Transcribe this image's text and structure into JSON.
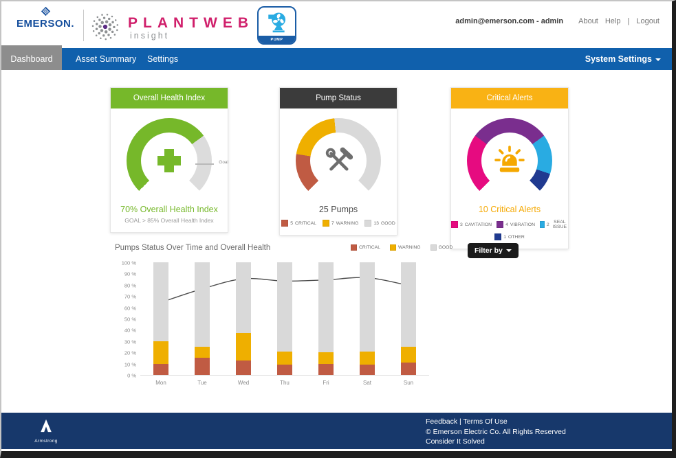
{
  "header": {
    "emerson_logo": "EMERSON.",
    "product_name": "PLANTWEB",
    "product_sub": "insight",
    "app_tile_label": "PUMP",
    "user": "admin@emerson.com - admin",
    "links": {
      "about": "About",
      "help": "Help",
      "separator": "|",
      "logout": "Logout"
    }
  },
  "navbar": {
    "tabs": [
      {
        "label": "Dashboard",
        "active": true
      },
      {
        "label": "Asset Summary",
        "active": false
      },
      {
        "label": "Settings",
        "active": false
      }
    ],
    "system_settings": "System Settings"
  },
  "cards": {
    "health": {
      "title": "Overall Health Index",
      "header_color": "#76b82a",
      "value_pct": 70,
      "goal_pct": 85,
      "goal_label": "Goal",
      "value_text": "70% Overall Health Index",
      "goal_text": "GOAL > 85% Overall Health Index",
      "ring": [
        {
          "color": "#76b82a",
          "value": 70
        },
        {
          "color": "#dcdcdc",
          "value": 30
        }
      ]
    },
    "pumps": {
      "title": "Pump Status",
      "header_color": "#3b3b3b",
      "total_text": "25 Pumps",
      "segments": [
        {
          "count": 5,
          "label": "CRITICAL",
          "color": "#c05b43"
        },
        {
          "count": 7,
          "label": "WARNING",
          "color": "#efaf00"
        },
        {
          "count": 13,
          "label": "GOOD",
          "color": "#d9d9d9"
        }
      ]
    },
    "alerts": {
      "title": "Critical Alerts",
      "header_color": "#f9b214",
      "total_text": "10 Critical Alerts",
      "total_color": "#f5a800",
      "segments": [
        {
          "count": 3,
          "label": "CAVITATION",
          "color": "#e60b80"
        },
        {
          "count": 4,
          "label": "VIBRATION",
          "color": "#7a2e8e"
        },
        {
          "count": 2,
          "label": "SEAL ISSUE",
          "color": "#29abe2"
        },
        {
          "count": 1,
          "label": "OTHER",
          "color": "#203a90"
        }
      ]
    }
  },
  "chart_data": {
    "type": "bar",
    "subtype": "stacked-bars-with-line",
    "title": "Pumps Status Over Time and Overall Health",
    "categories": [
      "Mon",
      "Tue",
      "Wed",
      "Thu",
      "Fri",
      "Sat",
      "Sun"
    ],
    "series": [
      {
        "name": "CRITICAL",
        "color": "#c05b43",
        "values": [
          10,
          15,
          13,
          9,
          10,
          9,
          11
        ]
      },
      {
        "name": "WARNING",
        "color": "#efaf00",
        "values": [
          20,
          10,
          24,
          12,
          10,
          12,
          14
        ]
      },
      {
        "name": "GOOD",
        "color": "#d9d9d9",
        "values": [
          70,
          75,
          63,
          79,
          80,
          79,
          75
        ]
      }
    ],
    "line": {
      "name": "Overall Health",
      "color": "#4d4d4d",
      "values": [
        65,
        77,
        86,
        84,
        85,
        87,
        80
      ]
    },
    "y_ticks": [
      "100 %",
      "90 %",
      "80 %",
      "70 %",
      "60 %",
      "50 %",
      "40 %",
      "30 %",
      "20 %",
      "10 %",
      "0 %"
    ],
    "ylim": [
      0,
      100
    ],
    "legend_position": "top-right",
    "grid": false,
    "filter_button": "Filter by"
  },
  "footer": {
    "logo": "Armstrong",
    "feedback": "Feedback",
    "separator": "|",
    "terms": "Terms Of Use",
    "copyright": "© Emerson Electric Co. All Rights Reserved",
    "tagline": "Consider It Solved"
  }
}
